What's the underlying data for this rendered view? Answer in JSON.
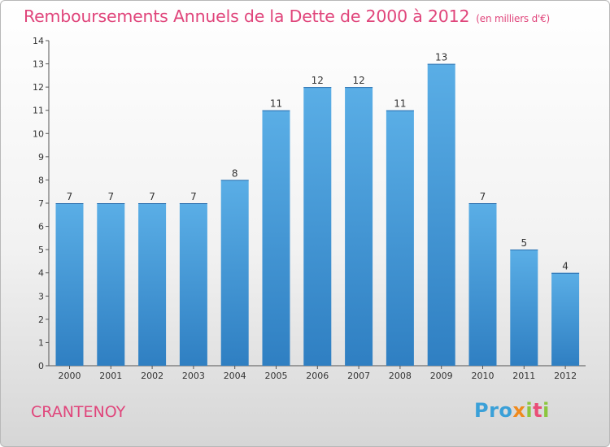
{
  "title": "Remboursements Annuels de la Dette de 2000 à 2012",
  "subtitle": "(en milliers d'€)",
  "commune": "CRANTENOY",
  "logo": {
    "p1": "Pro",
    "p2": "x",
    "p3": "i",
    "p4": "t",
    "p5": "i"
  },
  "colors": {
    "title": "#e0457b",
    "bar_top": "#5aaee6",
    "bar_bottom": "#2f7fc2"
  },
  "chart_data": {
    "type": "bar",
    "categories": [
      "2000",
      "2001",
      "2002",
      "2003",
      "2004",
      "2005",
      "2006",
      "2007",
      "2008",
      "2009",
      "2010",
      "2011",
      "2012"
    ],
    "values": [
      7,
      7,
      7,
      7,
      8,
      11,
      12,
      12,
      11,
      13,
      7,
      5,
      4
    ],
    "ylim": [
      0,
      14
    ],
    "yticks": [
      0,
      1,
      2,
      3,
      4,
      5,
      6,
      7,
      8,
      9,
      10,
      11,
      12,
      13,
      14
    ],
    "grid": false,
    "data_labels": true
  }
}
